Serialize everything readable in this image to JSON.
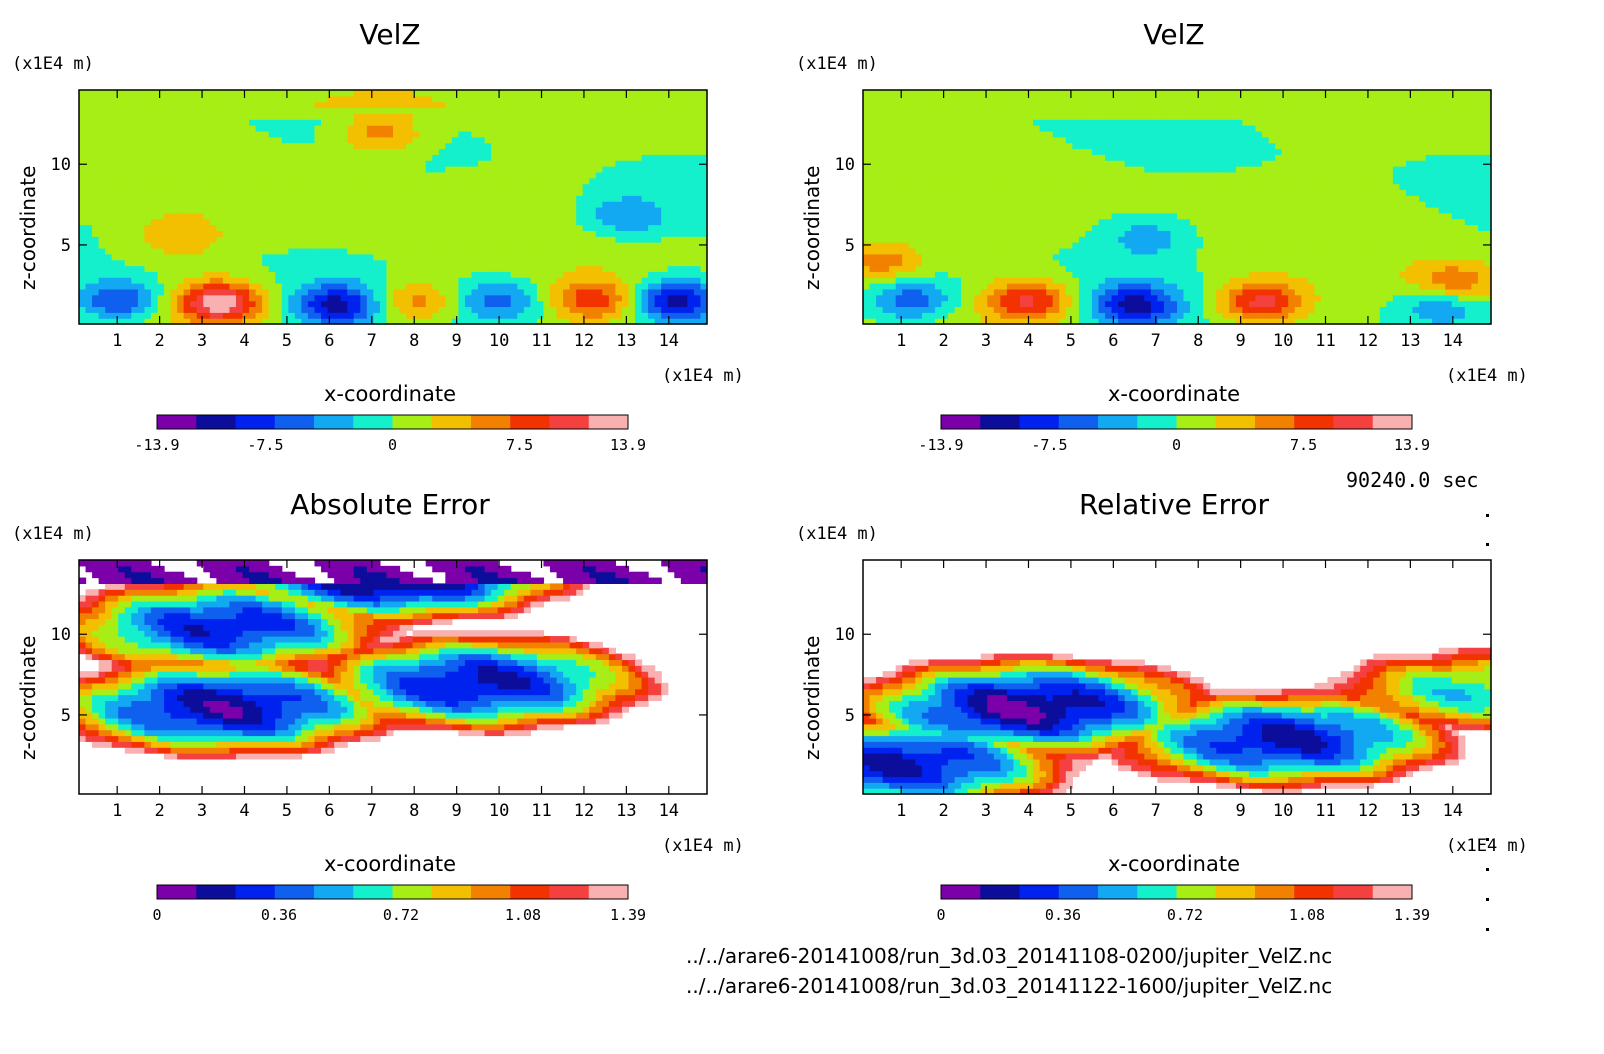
{
  "time_stamp": "90240.0 sec",
  "footer": {
    "file1": "../../arare6-20141008/run_3d.03_20141108-0200/jupiter_VelZ.nc",
    "file2": "../../arare6-20141008/run_3d.03_20141122-1600/jupiter_VelZ.nc"
  },
  "colors": {
    "velz_levels": [
      "#7b00aa",
      "#0d0d9c",
      "#0022ee",
      "#0f60ee",
      "#13a8f2",
      "#15f0cc",
      "#a6ee15",
      "#f2c000",
      "#f28100",
      "#f23300",
      "#f54040",
      "#f8b0b0"
    ],
    "error_levels": [
      "#7b00aa",
      "#0d0d9c",
      "#0022ee",
      "#0f60ee",
      "#13a8f2",
      "#15f0cc",
      "#a6ee15",
      "#f2c000",
      "#f28100",
      "#f23300",
      "#f54040",
      "#f8b0b0"
    ]
  },
  "chart_data": [
    {
      "type": "heatmap",
      "title": "VelZ",
      "xlabel": "x-coordinate",
      "ylabel": "z-coordinate",
      "x_unit": "(x1E4 m)",
      "y_unit": "(x1E4 m)",
      "xlim": [
        0.1,
        14.9
      ],
      "ylim": [
        0.1,
        14.6
      ],
      "x_ticks": [
        1,
        2,
        3,
        4,
        5,
        6,
        7,
        8,
        9,
        10,
        11,
        12,
        13,
        14
      ],
      "y_ticks": [
        5,
        10
      ],
      "colorbar": {
        "min": -13.9,
        "max": 13.9,
        "tick_labels": [
          "-13.9",
          "-7.5",
          "0",
          "7.5",
          "13.9"
        ]
      },
      "features": [
        {
          "x": 3.4,
          "z": 1.5,
          "value": 13.0
        },
        {
          "x": 1.0,
          "z": 1.6,
          "value": -8.0
        },
        {
          "x": 6.2,
          "z": 1.3,
          "value": -10.0
        },
        {
          "x": 8.0,
          "z": 1.5,
          "value": 6.0
        },
        {
          "x": 10.0,
          "z": 1.6,
          "value": -6.0
        },
        {
          "x": 12.2,
          "z": 1.6,
          "value": 8.0
        },
        {
          "x": 14.2,
          "z": 1.6,
          "value": -11.0
        },
        {
          "x": 2.5,
          "z": 5.5,
          "value": 4.0
        },
        {
          "x": 13.0,
          "z": 6.8,
          "value": -5.0
        },
        {
          "x": 7.2,
          "z": 12.0,
          "value": 6.0
        }
      ]
    },
    {
      "type": "heatmap",
      "title": "VelZ",
      "xlabel": "x-coordinate",
      "ylabel": "z-coordinate",
      "x_unit": "(x1E4 m)",
      "y_unit": "(x1E4 m)",
      "xlim": [
        0.1,
        14.9
      ],
      "ylim": [
        0.1,
        14.6
      ],
      "x_ticks": [
        1,
        2,
        3,
        4,
        5,
        6,
        7,
        8,
        9,
        10,
        11,
        12,
        13,
        14
      ],
      "y_ticks": [
        5,
        10
      ],
      "colorbar": {
        "min": -13.9,
        "max": 13.9,
        "tick_labels": [
          "-13.9",
          "-7.5",
          "0",
          "7.5",
          "13.9"
        ]
      },
      "features": [
        {
          "x": 4.0,
          "z": 1.6,
          "value": 9.5
        },
        {
          "x": 1.2,
          "z": 1.6,
          "value": -7.0
        },
        {
          "x": 6.5,
          "z": 1.3,
          "value": -10.0
        },
        {
          "x": 9.5,
          "z": 1.5,
          "value": 10.0
        },
        {
          "x": 14.0,
          "z": 2.5,
          "value": 8.0
        },
        {
          "x": 13.8,
          "z": 1.5,
          "value": -7.0
        },
        {
          "x": 6.8,
          "z": 5.5,
          "value": -4.0
        },
        {
          "x": 0.5,
          "z": 4.0,
          "value": 6.0
        }
      ]
    },
    {
      "type": "heatmap",
      "title": "Absolute Error",
      "xlabel": "x-coordinate",
      "ylabel": "z-coordinate",
      "x_unit": "(x1E4 m)",
      "y_unit": "(x1E4 m)",
      "xlim": [
        0.1,
        14.9
      ],
      "ylim": [
        0.1,
        14.6
      ],
      "x_ticks": [
        1,
        2,
        3,
        4,
        5,
        6,
        7,
        8,
        9,
        10,
        11,
        12,
        13,
        14
      ],
      "y_ticks": [
        5,
        10
      ],
      "colorbar": {
        "min": 0,
        "max": 1.39,
        "tick_labels": [
          "0",
          "0.36",
          "0.72",
          "1.08",
          "1.39"
        ]
      },
      "features": [
        {
          "x": 7.5,
          "z": 14.0,
          "value": 0.0
        },
        {
          "x": 3.5,
          "z": 5.5,
          "value": 0.15
        },
        {
          "x": 9.5,
          "z": 7.0,
          "value": 0.2
        },
        {
          "x": 3.5,
          "z": 10.5,
          "value": 0.25
        }
      ]
    },
    {
      "type": "heatmap",
      "title": "Relative Error",
      "xlabel": "x-coordinate",
      "ylabel": "z-coordinate",
      "x_unit": "(x1E4 m)",
      "y_unit": "(x1E4 m)",
      "xlim": [
        0.1,
        14.9
      ],
      "ylim": [
        0.1,
        14.6
      ],
      "x_ticks": [
        1,
        2,
        3,
        4,
        5,
        6,
        7,
        8,
        9,
        10,
        11,
        12,
        13,
        14
      ],
      "y_ticks": [
        5,
        10
      ],
      "colorbar": {
        "min": 0,
        "max": 1.39,
        "tick_labels": [
          "0",
          "0.36",
          "0.72",
          "1.08",
          "1.39"
        ]
      },
      "features": [
        {
          "x": 4.0,
          "z": 5.5,
          "value": 0.1
        },
        {
          "x": 1.0,
          "z": 2.0,
          "value": 0.2
        },
        {
          "x": 10.0,
          "z": 3.5,
          "value": 0.2
        },
        {
          "x": 14.5,
          "z": 6.5,
          "value": 0.6
        }
      ]
    }
  ]
}
